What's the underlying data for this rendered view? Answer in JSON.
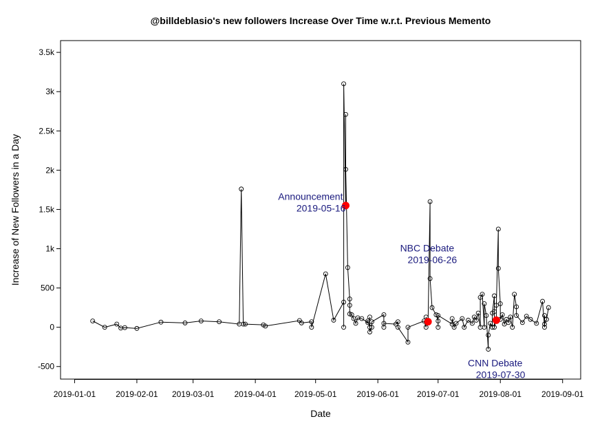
{
  "chart_data": {
    "type": "line",
    "title": "@billdeblasio's new followers Increase Over Time w.r.t. Previous Memento",
    "xlabel": "Date",
    "ylabel": "Increase of New Followers in a Day",
    "x_axis": {
      "type": "date",
      "range": [
        "2018-12-25",
        "2019-09-10"
      ],
      "ticks": [
        "2019-01-01",
        "2019-02-01",
        "2019-03-01",
        "2019-04-01",
        "2019-05-01",
        "2019-06-01",
        "2019-07-01",
        "2019-08-01",
        "2019-09-01"
      ]
    },
    "y_axis": {
      "range": [
        -660,
        3650
      ],
      "ticks": [
        -500,
        0,
        500,
        1000,
        1500,
        2000,
        2500,
        3000,
        3500
      ],
      "tick_labels": [
        "-500",
        "0",
        "500",
        "1k",
        "1.5k",
        "2k",
        "2.5k",
        "3k",
        "3.5k"
      ]
    },
    "grid": false,
    "series": [
      {
        "line_color": "#000000",
        "marker": "open-circle",
        "points": [
          [
            "2019-01-10",
            80
          ],
          [
            "2019-01-16",
            0
          ],
          [
            "2019-01-22",
            40
          ],
          [
            "2019-01-24",
            -10
          ],
          [
            "2019-01-26",
            -5
          ],
          [
            "2019-02-01",
            -15
          ],
          [
            "2019-02-13",
            65
          ],
          [
            "2019-02-25",
            55
          ],
          [
            "2019-03-05",
            80
          ],
          [
            "2019-03-14",
            70
          ],
          [
            "2019-03-24",
            40
          ],
          [
            "2019-03-25",
            1760
          ],
          [
            "2019-03-26",
            40
          ],
          [
            "2019-03-27",
            40
          ],
          [
            "2019-04-05",
            30
          ],
          [
            "2019-04-06",
            15
          ],
          [
            "2019-04-23",
            85
          ],
          [
            "2019-04-24",
            55
          ],
          [
            "2019-04-29",
            70
          ],
          [
            "2019-04-29",
            0
          ],
          [
            "2019-05-06",
            680
          ],
          [
            "2019-05-10",
            90
          ],
          [
            "2019-05-15",
            320
          ],
          [
            "2019-05-15",
            0
          ],
          [
            "2019-05-15",
            3100
          ],
          [
            "2019-05-16",
            1550
          ],
          [
            "2019-05-16",
            2710
          ],
          [
            "2019-05-16",
            2010
          ],
          [
            "2019-05-17",
            760
          ],
          [
            "2019-05-18",
            360
          ],
          [
            "2019-05-18",
            280
          ],
          [
            "2019-05-18",
            170
          ],
          [
            "2019-05-19",
            160
          ],
          [
            "2019-05-20",
            110
          ],
          [
            "2019-05-21",
            50
          ],
          [
            "2019-05-22",
            120
          ],
          [
            "2019-05-24",
            110
          ],
          [
            "2019-05-27",
            60
          ],
          [
            "2019-05-27",
            80
          ],
          [
            "2019-05-28",
            0
          ],
          [
            "2019-05-28",
            130
          ],
          [
            "2019-05-28",
            -60
          ],
          [
            "2019-05-29",
            0
          ],
          [
            "2019-05-29",
            70
          ],
          [
            "2019-06-04",
            160
          ],
          [
            "2019-06-04",
            0
          ],
          [
            "2019-06-04",
            50
          ],
          [
            "2019-06-10",
            40
          ],
          [
            "2019-06-11",
            70
          ],
          [
            "2019-06-11",
            0
          ],
          [
            "2019-06-16",
            -190
          ],
          [
            "2019-06-16",
            0
          ],
          [
            "2019-06-24",
            80
          ],
          [
            "2019-06-25",
            0
          ],
          [
            "2019-06-25",
            130
          ],
          [
            "2019-06-26",
            70
          ],
          [
            "2019-06-27",
            1600
          ],
          [
            "2019-06-27",
            620
          ],
          [
            "2019-06-28",
            250
          ],
          [
            "2019-06-30",
            160
          ],
          [
            "2019-07-01",
            80
          ],
          [
            "2019-07-01",
            0
          ],
          [
            "2019-07-01",
            150
          ],
          [
            "2019-07-08",
            40
          ],
          [
            "2019-07-08",
            110
          ],
          [
            "2019-07-09",
            0
          ],
          [
            "2019-07-10",
            50
          ],
          [
            "2019-07-13",
            110
          ],
          [
            "2019-07-14",
            0
          ],
          [
            "2019-07-16",
            90
          ],
          [
            "2019-07-18",
            50
          ],
          [
            "2019-07-19",
            130
          ],
          [
            "2019-07-20",
            90
          ],
          [
            "2019-07-21",
            180
          ],
          [
            "2019-07-22",
            0
          ],
          [
            "2019-07-22",
            380
          ],
          [
            "2019-07-23",
            420
          ],
          [
            "2019-07-24",
            0
          ],
          [
            "2019-07-24",
            300
          ],
          [
            "2019-07-25",
            150
          ],
          [
            "2019-07-26",
            -280
          ],
          [
            "2019-07-26",
            -100
          ],
          [
            "2019-07-27",
            50
          ],
          [
            "2019-07-28",
            0
          ],
          [
            "2019-07-28",
            180
          ],
          [
            "2019-07-29",
            400
          ],
          [
            "2019-07-29",
            200
          ],
          [
            "2019-07-29",
            0
          ],
          [
            "2019-07-30",
            90
          ],
          [
            "2019-07-30",
            280
          ],
          [
            "2019-07-31",
            1250
          ],
          [
            "2019-07-31",
            750
          ],
          [
            "2019-08-01",
            300
          ],
          [
            "2019-08-01",
            100
          ],
          [
            "2019-08-02",
            160
          ],
          [
            "2019-08-03",
            40
          ],
          [
            "2019-08-04",
            100
          ],
          [
            "2019-08-05",
            60
          ],
          [
            "2019-08-06",
            130
          ],
          [
            "2019-08-07",
            0
          ],
          [
            "2019-08-08",
            420
          ],
          [
            "2019-08-09",
            260
          ],
          [
            "2019-08-09",
            150
          ],
          [
            "2019-08-12",
            60
          ],
          [
            "2019-08-14",
            140
          ],
          [
            "2019-08-16",
            100
          ],
          [
            "2019-08-19",
            50
          ],
          [
            "2019-08-22",
            330
          ],
          [
            "2019-08-23",
            0
          ],
          [
            "2019-08-23",
            150
          ],
          [
            "2019-08-23",
            40
          ],
          [
            "2019-08-24",
            100
          ],
          [
            "2019-08-25",
            250
          ]
        ]
      }
    ],
    "highlights": [
      {
        "date": "2019-05-16",
        "value": 1550,
        "color": "#ff0000",
        "label": "Announcement",
        "label_date": "2019-05-16"
      },
      {
        "date": "2019-06-26",
        "value": 70,
        "color": "#ff0000",
        "label": "NBC Debate",
        "label_date": "2019-06-26"
      },
      {
        "date": "2019-07-30",
        "value": 90,
        "color": "#ff0000",
        "label": "CNN Debate",
        "label_date": "2019-07-30"
      }
    ],
    "annotation_color": "#1a1a7e"
  }
}
